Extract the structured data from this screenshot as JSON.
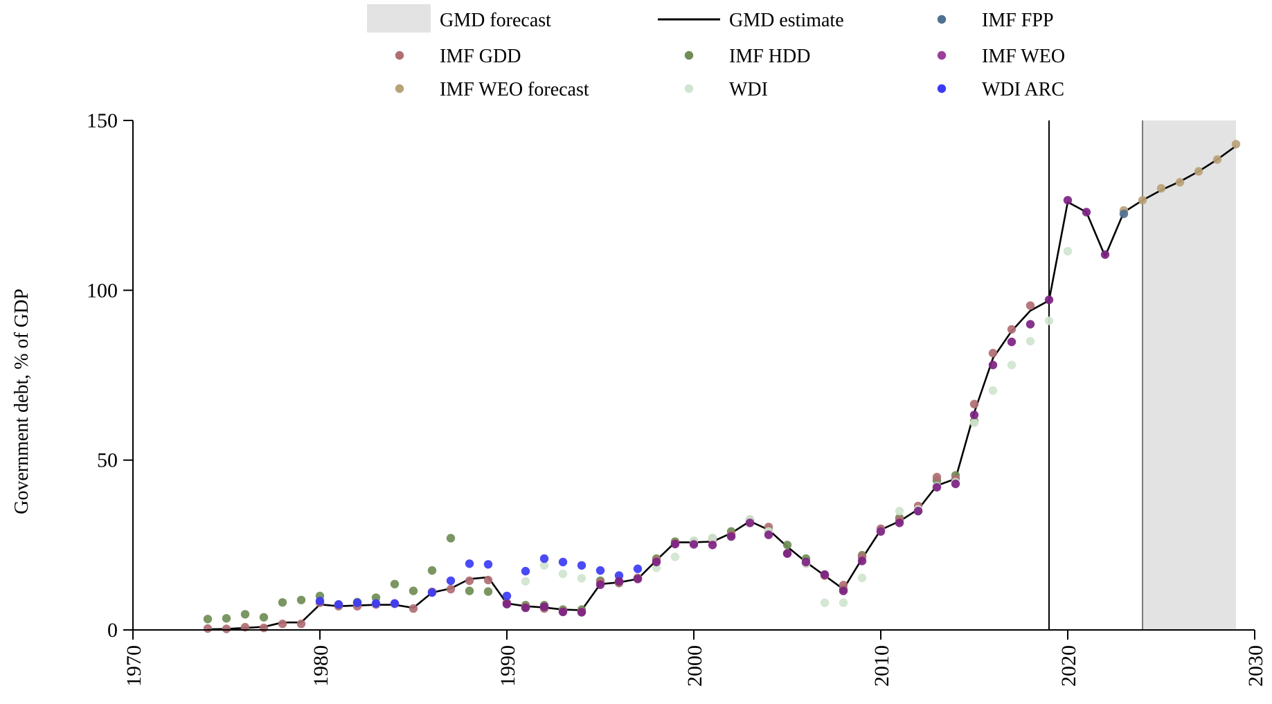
{
  "chart_data": {
    "type": "scatter",
    "ylabel": "Government debt, % of GDP",
    "xlabel": "",
    "xlim": [
      1970,
      2030
    ],
    "ylim": [
      0,
      150
    ],
    "x_ticks": [
      "1970",
      "1980",
      "1990",
      "2000",
      "2010",
      "2020",
      "2030"
    ],
    "y_ticks": [
      "0",
      "50",
      "100",
      "150"
    ],
    "forecast_region": [
      2024,
      2029
    ],
    "vertical_line_year": 2019,
    "legend_placement": "top",
    "legend": [
      {
        "label": "GMD forecast",
        "kind": "band",
        "color": "#e3e3e3"
      },
      {
        "label": "GMD estimate",
        "kind": "line",
        "color": "#000000"
      },
      {
        "label": "IMF FPP",
        "kind": "dot",
        "color": "#4f7191"
      },
      {
        "label": "IMF GDD",
        "kind": "dot",
        "color": "#b06e73"
      },
      {
        "label": "IMF HDD",
        "kind": "dot",
        "color": "#6f8d55"
      },
      {
        "label": "IMF WEO",
        "kind": "dot",
        "color": "#9c3f9c"
      },
      {
        "label": "IMF WEO forecast",
        "kind": "dot",
        "color": "#b8a277"
      },
      {
        "label": "WDI",
        "kind": "dot",
        "color": "#cfe5cf"
      },
      {
        "label": "WDI ARC",
        "kind": "dot",
        "color": "#3b3bf5"
      }
    ],
    "series": [
      {
        "name": "GMD estimate",
        "kind": "line",
        "color": "#000000",
        "points": [
          [
            1974,
            0.2
          ],
          [
            1975,
            0.3
          ],
          [
            1976,
            0.6
          ],
          [
            1977,
            0.9
          ],
          [
            1978,
            2.2
          ],
          [
            1979,
            2.2
          ],
          [
            1980,
            7.5
          ],
          [
            1981,
            7.0
          ],
          [
            1982,
            7.2
          ],
          [
            1983,
            7.4
          ],
          [
            1984,
            7.4
          ],
          [
            1985,
            6.5
          ],
          [
            1986,
            11.0
          ],
          [
            1987,
            12.2
          ],
          [
            1988,
            15.0
          ],
          [
            1989,
            15.5
          ],
          [
            1990,
            7.8
          ],
          [
            1991,
            7.0
          ],
          [
            1992,
            6.6
          ],
          [
            1993,
            6.0
          ],
          [
            1994,
            5.8
          ],
          [
            1995,
            13.5
          ],
          [
            1996,
            14.0
          ],
          [
            1997,
            15.0
          ],
          [
            1998,
            20.5
          ],
          [
            1999,
            25.8
          ],
          [
            2000,
            25.8
          ],
          [
            2001,
            26.0
          ],
          [
            2002,
            28.5
          ],
          [
            2003,
            32.0
          ],
          [
            2004,
            29.5
          ],
          [
            2005,
            24.5
          ],
          [
            2006,
            20.0
          ],
          [
            2007,
            16.0
          ],
          [
            2008,
            12.0
          ],
          [
            2009,
            21.0
          ],
          [
            2010,
            29.5
          ],
          [
            2011,
            32.0
          ],
          [
            2012,
            35.5
          ],
          [
            2013,
            42.5
          ],
          [
            2014,
            44.5
          ],
          [
            2015,
            64.0
          ],
          [
            2016,
            80.0
          ],
          [
            2017,
            88.0
          ],
          [
            2018,
            94.0
          ],
          [
            2019,
            97.0
          ],
          [
            2020,
            126.0
          ],
          [
            2021,
            123.0
          ],
          [
            2022,
            110.0
          ],
          [
            2023,
            123.0
          ],
          [
            2024,
            126.5
          ],
          [
            2025,
            129.5
          ],
          [
            2026,
            132.0
          ],
          [
            2027,
            135.0
          ],
          [
            2028,
            138.5
          ],
          [
            2029,
            142.5
          ]
        ]
      },
      {
        "name": "IMF HDD",
        "kind": "dot",
        "color": "#6f8d55",
        "points": [
          [
            1974,
            3.2
          ],
          [
            1975,
            3.4
          ],
          [
            1976,
            4.6
          ],
          [
            1977,
            3.7
          ],
          [
            1978,
            8.1
          ],
          [
            1979,
            8.8
          ],
          [
            1980,
            10.0
          ],
          [
            1981,
            7.5
          ],
          [
            1982,
            8.2
          ],
          [
            1983,
            9.5
          ],
          [
            1984,
            13.5
          ],
          [
            1985,
            11.5
          ],
          [
            1986,
            17.5
          ],
          [
            1987,
            27.0
          ],
          [
            1988,
            11.5
          ],
          [
            1989,
            11.3
          ],
          [
            1990,
            8.0
          ],
          [
            1991,
            7.3
          ],
          [
            1992,
            7.3
          ],
          [
            1993,
            6.0
          ],
          [
            1994,
            6.0
          ],
          [
            1995,
            14.5
          ],
          [
            1996,
            13.8
          ],
          [
            1997,
            15.3
          ],
          [
            1998,
            21.0
          ],
          [
            1999,
            26.0
          ],
          [
            2000,
            26.0
          ],
          [
            2001,
            27.0
          ],
          [
            2002,
            29.0
          ],
          [
            2003,
            32.3
          ],
          [
            2004,
            29.3
          ],
          [
            2005,
            25.0
          ],
          [
            2006,
            21.0
          ],
          [
            2007,
            16.2
          ],
          [
            2008,
            12.0
          ],
          [
            2009,
            22.0
          ],
          [
            2010,
            29.5
          ],
          [
            2011,
            33.0
          ],
          [
            2012,
            35.0
          ],
          [
            2013,
            44.0
          ],
          [
            2014,
            45.5
          ],
          [
            2015,
            61.5
          ]
        ]
      },
      {
        "name": "IMF GDD",
        "kind": "dot",
        "color": "#b06e73",
        "points": [
          [
            1974,
            0.4
          ],
          [
            1975,
            0.3
          ],
          [
            1976,
            0.8
          ],
          [
            1977,
            0.6
          ],
          [
            1978,
            1.8
          ],
          [
            1979,
            1.8
          ],
          [
            1980,
            8.0
          ],
          [
            1981,
            7.0
          ],
          [
            1982,
            7.0
          ],
          [
            1983,
            7.5
          ],
          [
            1984,
            7.7
          ],
          [
            1985,
            6.3
          ],
          [
            1986,
            11.2
          ],
          [
            1987,
            12.0
          ],
          [
            1988,
            14.5
          ],
          [
            1989,
            14.7
          ],
          [
            1990,
            7.9
          ],
          [
            1991,
            6.7
          ],
          [
            1992,
            6.3
          ],
          [
            1993,
            5.5
          ],
          [
            1994,
            5.4
          ],
          [
            1995,
            14.0
          ],
          [
            1996,
            14.0
          ],
          [
            1997,
            15.3
          ],
          [
            1998,
            20.5
          ],
          [
            1999,
            25.5
          ],
          [
            2000,
            26.0
          ],
          [
            2001,
            26.5
          ],
          [
            2002,
            28.0
          ],
          [
            2003,
            32.5
          ],
          [
            2004,
            30.3
          ],
          [
            2005,
            22.5
          ],
          [
            2006,
            19.5
          ],
          [
            2007,
            16.0
          ],
          [
            2008,
            13.2
          ],
          [
            2009,
            21.5
          ],
          [
            2010,
            29.8
          ],
          [
            2011,
            32.3
          ],
          [
            2012,
            36.5
          ],
          [
            2013,
            45.0
          ],
          [
            2014,
            44.5
          ],
          [
            2015,
            66.5
          ],
          [
            2016,
            81.5
          ],
          [
            2017,
            88.5
          ],
          [
            2018,
            95.5
          ]
        ]
      },
      {
        "name": "WDI",
        "kind": "dot",
        "color": "#cfe5cf",
        "points": [
          [
            1991,
            14.3
          ],
          [
            1992,
            19.0
          ],
          [
            1993,
            16.5
          ],
          [
            1994,
            15.2
          ],
          [
            1998,
            18.3
          ],
          [
            1999,
            21.5
          ],
          [
            2000,
            26.3
          ],
          [
            2001,
            27.0
          ],
          [
            2003,
            32.5
          ],
          [
            2004,
            29.0
          ],
          [
            2006,
            19.5
          ],
          [
            2007,
            8.0
          ],
          [
            2008,
            8.0
          ],
          [
            2009,
            15.3
          ],
          [
            2010,
            29.0
          ],
          [
            2011,
            35.0
          ],
          [
            2012,
            35.5
          ],
          [
            2013,
            42.3
          ],
          [
            2014,
            43.5
          ],
          [
            2015,
            61.0
          ],
          [
            2016,
            70.5
          ],
          [
            2017,
            78.0
          ],
          [
            2018,
            85.0
          ],
          [
            2019,
            91.0
          ],
          [
            2020,
            111.5
          ]
        ]
      },
      {
        "name": "WDI ARC",
        "kind": "dot",
        "color": "#3b3bf5",
        "points": [
          [
            1980,
            8.5
          ],
          [
            1981,
            7.5
          ],
          [
            1982,
            8.0
          ],
          [
            1983,
            7.8
          ],
          [
            1984,
            7.8
          ],
          [
            1986,
            11.0
          ],
          [
            1987,
            14.5
          ],
          [
            1988,
            19.5
          ],
          [
            1989,
            19.3
          ],
          [
            1990,
            10.0
          ],
          [
            1991,
            17.3
          ],
          [
            1992,
            21.0
          ],
          [
            1993,
            20.0
          ],
          [
            1994,
            19.0
          ],
          [
            1995,
            17.5
          ],
          [
            1996,
            16.0
          ],
          [
            1997,
            18.0
          ]
        ]
      },
      {
        "name": "IMF WEO",
        "kind": "dot",
        "color": "#7d2283",
        "points": [
          [
            1990,
            7.6
          ],
          [
            1991,
            6.5
          ],
          [
            1992,
            6.8
          ],
          [
            1993,
            5.3
          ],
          [
            1994,
            5.2
          ],
          [
            1995,
            13.3
          ],
          [
            1996,
            14.3
          ],
          [
            1997,
            15.0
          ],
          [
            1998,
            20.0
          ],
          [
            1999,
            25.3
          ],
          [
            2000,
            25.2
          ],
          [
            2001,
            25.0
          ],
          [
            2002,
            27.5
          ],
          [
            2003,
            31.5
          ],
          [
            2004,
            28.0
          ],
          [
            2005,
            22.5
          ],
          [
            2006,
            20.0
          ],
          [
            2007,
            16.3
          ],
          [
            2008,
            11.5
          ],
          [
            2009,
            20.3
          ],
          [
            2010,
            29.0
          ],
          [
            2011,
            31.5
          ],
          [
            2012,
            35.0
          ],
          [
            2013,
            42.0
          ],
          [
            2014,
            43.0
          ],
          [
            2015,
            63.3
          ],
          [
            2016,
            78.0
          ],
          [
            2017,
            84.8
          ],
          [
            2018,
            90.0
          ],
          [
            2019,
            97.2
          ],
          [
            2020,
            126.5
          ],
          [
            2021,
            123.0
          ],
          [
            2022,
            110.5
          ]
        ]
      },
      {
        "name": "IMF WEO forecast",
        "kind": "dot",
        "color": "#b8a277",
        "points": [
          [
            2023,
            123.5
          ],
          [
            2024,
            126.5
          ],
          [
            2025,
            130.0
          ],
          [
            2026,
            131.8
          ],
          [
            2027,
            135.0
          ],
          [
            2028,
            138.5
          ],
          [
            2029,
            143.0
          ]
        ]
      },
      {
        "name": "IMF FPP",
        "kind": "dot",
        "color": "#4f7191",
        "points": [
          [
            2023,
            122.5
          ]
        ]
      }
    ]
  }
}
